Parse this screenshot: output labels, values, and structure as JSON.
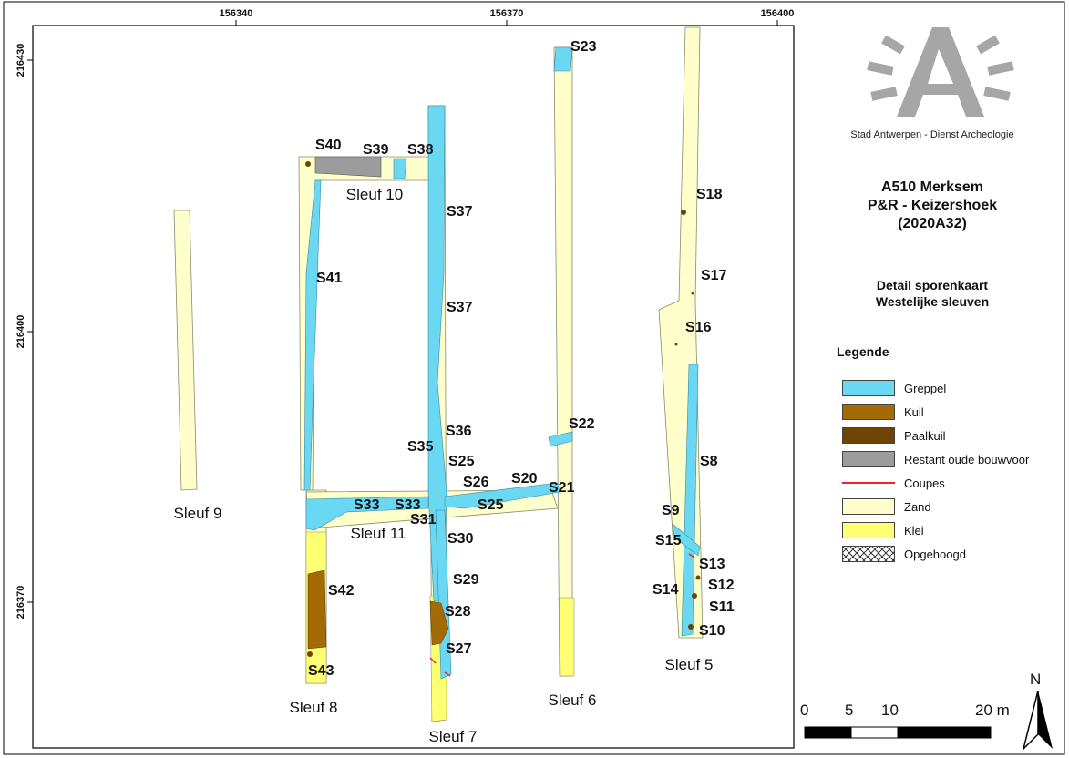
{
  "map": {
    "x_ticks": [
      "156340",
      "156370",
      "156400"
    ],
    "y_ticks": [
      "216430",
      "216400",
      "216370"
    ],
    "trench_labels": [
      "Sleuf 9",
      "Sleuf 10",
      "Sleuf 11",
      "Sleuf 8",
      "Sleuf 7",
      "Sleuf 6",
      "Sleuf 5"
    ],
    "feature_labels": [
      "S40",
      "S39",
      "S38",
      "S37",
      "S37",
      "S41",
      "S36",
      "S35",
      "S25",
      "S26",
      "S25",
      "S20",
      "S21",
      "S33",
      "S33",
      "S31",
      "S30",
      "S29",
      "S28",
      "S27",
      "S42",
      "S43",
      "S23",
      "S22",
      "S18",
      "S17",
      "S16",
      "S8",
      "S9",
      "S15",
      "S13",
      "S12",
      "S14",
      "S11",
      "S10"
    ]
  },
  "panel": {
    "logo_caption": "Stad Antwerpen - Dienst Archeologie",
    "project_line1": "A510 Merksem",
    "project_line2": "P&R - Keizershoek",
    "project_line3": "(2020A32)",
    "detail_line1": "Detail sporenkaart",
    "detail_line2": "Westelijke sleuven",
    "legend_title": "Legende",
    "legend": [
      {
        "label": "Greppel",
        "color": "#6ad8f2"
      },
      {
        "label": "Kuil",
        "color": "#a46a06"
      },
      {
        "label": "Paalkuil",
        "color": "#6e4303"
      },
      {
        "label": "Restant oude bouwvoor",
        "color": "#9c9c9c"
      },
      {
        "label": "Coupes",
        "color": "#e8252a"
      },
      {
        "label": "Zand",
        "color": "#ffffcc"
      },
      {
        "label": "Klei",
        "color": "#ffff73"
      },
      {
        "label": "Opgehoogd",
        "color": "hatch"
      }
    ],
    "scale": {
      "ticks": [
        "0",
        "5",
        "10",
        "20 m"
      ]
    },
    "north": "N"
  }
}
